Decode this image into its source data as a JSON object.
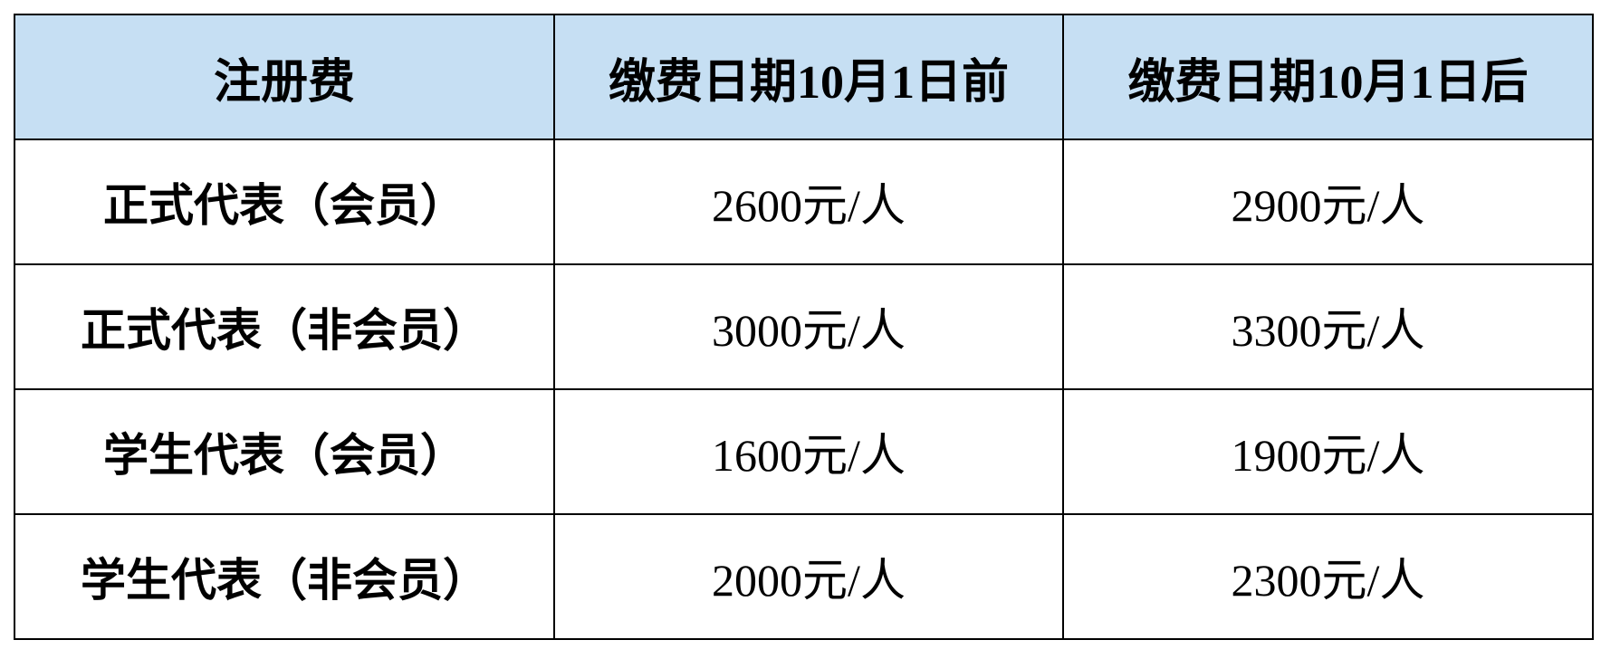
{
  "header": {
    "colors": {
      "header_bg": "#c6dff3"
    },
    "columns": [
      "注册费",
      "缴费日期10月1日前",
      "缴费日期10月1日后"
    ]
  },
  "rows": [
    {
      "type": "正式代表（会员）",
      "before": "2600元/人",
      "after": "2900元/人"
    },
    {
      "type": "正式代表（非会员）",
      "before": "3000元/人",
      "after": "3300元/人"
    },
    {
      "type": "学生代表（会员）",
      "before": "1600元/人",
      "after": "1900元/人"
    },
    {
      "type": "学生代表（非会员）",
      "before": "2000元/人",
      "after": "2300元/人"
    }
  ]
}
